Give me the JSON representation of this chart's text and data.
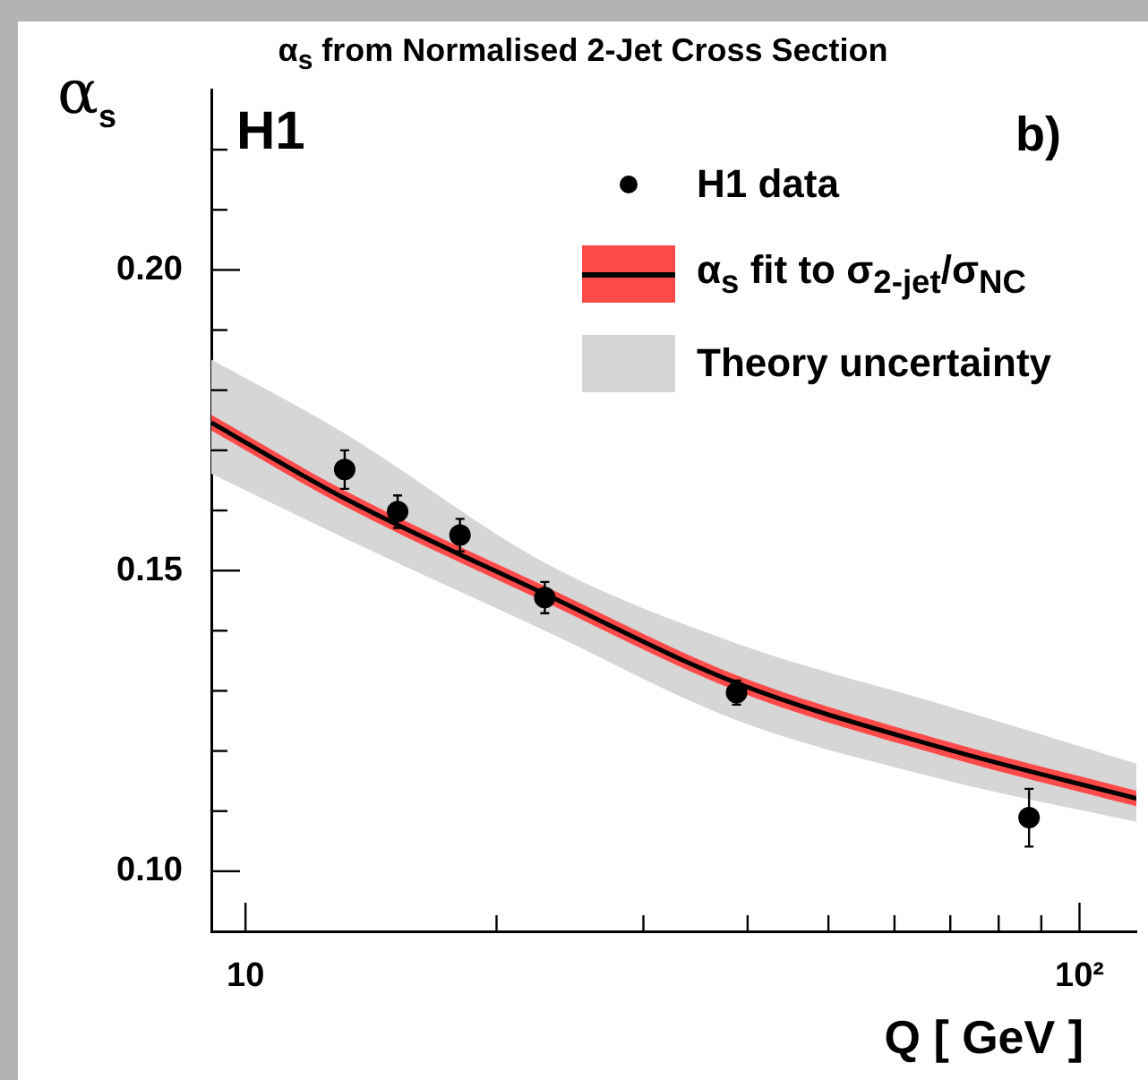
{
  "chart_data": {
    "type": "scatter",
    "title": "α$_{s}$ from Normalised 2-Jet Cross Section",
    "xlabel": "Q  [ GeV ]",
    "ylabel": "α$_{s}$",
    "annotations": [
      "H1",
      "b)"
    ],
    "log": "x",
    "grid": false,
    "legend": "top right",
    "xlim": [
      9.1,
      117
    ],
    "xticks": [
      {
        "value": 10,
        "label": "10"
      },
      {
        "value": 20,
        "label": null
      },
      {
        "value": 30,
        "label": null
      },
      {
        "value": 40,
        "label": null
      },
      {
        "value": 50,
        "label": null
      },
      {
        "value": 60,
        "label": null
      },
      {
        "value": 70,
        "label": null
      },
      {
        "value": 80,
        "label": null
      },
      {
        "value": 90,
        "label": null
      },
      {
        "value": 100,
        "label": "10²"
      }
    ],
    "ylim": [
      0.09,
      0.23
    ],
    "yticks": [
      {
        "value": 0.1,
        "label": "0.10"
      },
      {
        "value": 0.11,
        "label": null
      },
      {
        "value": 0.12,
        "label": null
      },
      {
        "value": 0.13,
        "label": null
      },
      {
        "value": 0.14,
        "label": null
      },
      {
        "value": 0.15,
        "label": "0.15"
      },
      {
        "value": 0.16,
        "label": null
      },
      {
        "value": 0.17,
        "label": null
      },
      {
        "value": 0.18,
        "label": null
      },
      {
        "value": 0.19,
        "label": null
      },
      {
        "value": 0.2,
        "label": "0.20"
      },
      {
        "value": 0.21,
        "label": null
      },
      {
        "value": 0.22,
        "label": null
      }
    ],
    "series": [
      {
        "name": "Theory uncertainty",
        "type": "line",
        "color": "#d6d6d6",
        "x": [
          9.1,
          13.15,
          22.85,
          38.8,
          68.5,
          117
        ],
        "values": [
          null,
          null,
          null,
          null,
          null,
          null
        ],
        "lower": [
          0.1661,
          0.1554,
          0.14,
          0.1251,
          0.1153,
          0.1082
        ],
        "upper": [
          0.1851,
          0.1728,
          0.1513,
          0.1379,
          0.1277,
          0.1179
        ]
      },
      {
        "type": "line",
        "color": "#ff4a4a",
        "x": [
          9.1,
          13.15,
          22.85,
          38.8,
          68.5,
          117
        ],
        "values": [
          null,
          null,
          null,
          null,
          null,
          null
        ],
        "lower": [
          0.1733,
          0.1607,
          0.1448,
          0.13,
          0.1192,
          0.1108
        ],
        "upper": [
          0.1759,
          0.1633,
          0.1474,
          0.1326,
          0.1218,
          0.1134
        ]
      },
      {
        "name": "α$_{s}$ fit to σ$_{2-jet}$/σ$_{NC}$",
        "type": "line",
        "color": "#000000",
        "x": [
          9.1,
          13.15,
          22.85,
          38.8,
          68.5,
          117
        ],
        "values": [
          0.1746,
          0.162,
          0.1461,
          0.1313,
          0.1205,
          0.1121
        ]
      },
      {
        "name": "H1 data",
        "type": "scatter",
        "color": "#000000",
        "marker": "circle",
        "x": [
          13.15,
          15.22,
          18.08,
          22.85,
          38.8,
          87.0
        ],
        "values": [
          0.1668,
          0.1598,
          0.1559,
          0.1455,
          0.1297,
          0.1089
        ],
        "errors": [
          0.0032,
          0.0027,
          0.0027,
          0.0026,
          0.002,
          0.0048
        ]
      }
    ]
  }
}
